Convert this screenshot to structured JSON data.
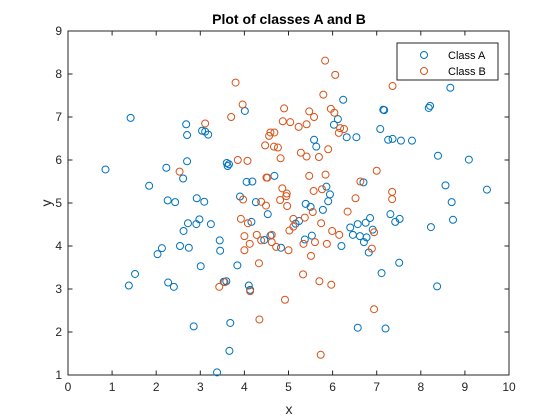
{
  "chart_data": {
    "type": "scatter",
    "title": "Plot of classes A and B",
    "xlabel": "x",
    "ylabel": "y",
    "xlim": [
      0,
      10
    ],
    "ylim": [
      1,
      9
    ],
    "xticks": [
      "0",
      "1",
      "2",
      "3",
      "4",
      "5",
      "6",
      "7",
      "8",
      "9",
      "10"
    ],
    "yticks": [
      "1",
      "2",
      "3",
      "4",
      "5",
      "6",
      "7",
      "8",
      "9"
    ],
    "grid": false,
    "legend_position": "top-right",
    "series": [
      {
        "name": "Class A",
        "color": "#0072BD",
        "marker": "open-circle",
        "points": [
          [
            0.85,
            5.78
          ],
          [
            1.38,
            3.08
          ],
          [
            1.42,
            6.98
          ],
          [
            1.52,
            3.35
          ],
          [
            1.84,
            5.4
          ],
          [
            2.03,
            3.81
          ],
          [
            2.13,
            3.95
          ],
          [
            2.23,
            5.82
          ],
          [
            2.26,
            5.06
          ],
          [
            2.27,
            3.15
          ],
          [
            2.4,
            3.05
          ],
          [
            2.43,
            5.02
          ],
          [
            2.54,
            4.0
          ],
          [
            2.61,
            5.57
          ],
          [
            2.62,
            4.35
          ],
          [
            2.68,
            6.83
          ],
          [
            2.7,
            6.58
          ],
          [
            2.7,
            5.97
          ],
          [
            2.72,
            4.53
          ],
          [
            2.74,
            3.96
          ],
          [
            2.85,
            2.13
          ],
          [
            2.91,
            4.51
          ],
          [
            2.92,
            5.11
          ],
          [
            2.98,
            4.62
          ],
          [
            3.01,
            3.53
          ],
          [
            3.04,
            6.68
          ],
          [
            3.09,
            5.03
          ],
          [
            3.11,
            6.66
          ],
          [
            3.18,
            6.59
          ],
          [
            3.24,
            4.51
          ],
          [
            3.38,
            1.06
          ],
          [
            3.44,
            4.13
          ],
          [
            3.45,
            3.89
          ],
          [
            3.53,
            3.17
          ],
          [
            3.59,
            3.18
          ],
          [
            3.6,
            5.93
          ],
          [
            3.62,
            5.86
          ],
          [
            3.65,
            5.9
          ],
          [
            3.66,
            1.56
          ],
          [
            3.68,
            2.21
          ],
          [
            3.84,
            3.55
          ],
          [
            3.9,
            5.15
          ],
          [
            4.01,
            7.14
          ],
          [
            4.05,
            5.49
          ],
          [
            4.1,
            3.08
          ],
          [
            4.13,
            2.98
          ],
          [
            4.16,
            4.56
          ],
          [
            4.18,
            5.5
          ],
          [
            4.26,
            5.02
          ],
          [
            4.45,
            4.14
          ],
          [
            4.53,
            4.74
          ],
          [
            4.59,
            4.24
          ],
          [
            4.68,
            5.63
          ],
          [
            4.83,
            3.96
          ],
          [
            5.16,
            4.52
          ],
          [
            5.24,
            4.58
          ],
          [
            5.37,
            4.15
          ],
          [
            5.39,
            4.98
          ],
          [
            5.5,
            4.91
          ],
          [
            5.53,
            4.24
          ],
          [
            5.58,
            6.47
          ],
          [
            5.63,
            6.31
          ],
          [
            5.78,
            4.84
          ],
          [
            5.86,
            5.38
          ],
          [
            5.9,
            5.04
          ],
          [
            5.94,
            5.2
          ],
          [
            6.03,
            6.82
          ],
          [
            6.12,
            6.95
          ],
          [
            6.2,
            4.0
          ],
          [
            6.24,
            7.4
          ],
          [
            6.32,
            6.53
          ],
          [
            6.4,
            4.43
          ],
          [
            6.46,
            4.26
          ],
          [
            6.54,
            6.53
          ],
          [
            6.57,
            4.51
          ],
          [
            6.57,
            2.1
          ],
          [
            6.62,
            4.23
          ],
          [
            6.7,
            5.48
          ],
          [
            6.71,
            4.09
          ],
          [
            6.75,
            4.54
          ],
          [
            6.77,
            4.2
          ],
          [
            6.82,
            3.85
          ],
          [
            6.85,
            4.65
          ],
          [
            6.91,
            4.38
          ],
          [
            7.08,
            6.72
          ],
          [
            7.11,
            3.37
          ],
          [
            7.15,
            7.17
          ],
          [
            7.17,
            7.16
          ],
          [
            7.2,
            2.08
          ],
          [
            7.26,
            6.47
          ],
          [
            7.31,
            4.74
          ],
          [
            7.36,
            6.49
          ],
          [
            7.42,
            4.56
          ],
          [
            7.51,
            3.61
          ],
          [
            7.52,
            4.63
          ],
          [
            7.55,
            6.45
          ],
          [
            7.8,
            6.45
          ],
          [
            8.18,
            7.21
          ],
          [
            8.21,
            7.26
          ],
          [
            8.23,
            4.44
          ],
          [
            8.37,
            3.06
          ],
          [
            8.39,
            6.1
          ],
          [
            8.56,
            5.41
          ],
          [
            8.67,
            7.68
          ],
          [
            8.7,
            5.02
          ],
          [
            8.73,
            4.61
          ],
          [
            9.09,
            6.01
          ],
          [
            9.5,
            5.31
          ]
        ]
      },
      {
        "name": "Class B",
        "color": "#D95319",
        "marker": "open-circle",
        "points": [
          [
            2.53,
            5.73
          ],
          [
            3.11,
            6.85
          ],
          [
            3.43,
            3.05
          ],
          [
            3.55,
            3.16
          ],
          [
            3.7,
            7.0
          ],
          [
            3.8,
            7.8
          ],
          [
            3.85,
            6.0
          ],
          [
            3.92,
            4.63
          ],
          [
            3.96,
            7.29
          ],
          [
            3.97,
            5.08
          ],
          [
            4.0,
            3.9
          ],
          [
            4.0,
            4.23
          ],
          [
            4.07,
            5.98
          ],
          [
            4.08,
            4.53
          ],
          [
            4.12,
            4.05
          ],
          [
            4.13,
            2.95
          ],
          [
            4.28,
            4.26
          ],
          [
            4.33,
            3.6
          ],
          [
            4.34,
            2.29
          ],
          [
            4.38,
            4.13
          ],
          [
            4.38,
            5.03
          ],
          [
            4.47,
            6.34
          ],
          [
            4.49,
            4.94
          ],
          [
            4.5,
            5.59
          ],
          [
            4.52,
            5.59
          ],
          [
            4.56,
            6.56
          ],
          [
            4.59,
            6.64
          ],
          [
            4.62,
            4.09
          ],
          [
            4.62,
            4.26
          ],
          [
            4.67,
            6.31
          ],
          [
            4.68,
            6.64
          ],
          [
            4.72,
            3.98
          ],
          [
            4.76,
            6.29
          ],
          [
            4.81,
            5.07
          ],
          [
            4.82,
            6.04
          ],
          [
            4.86,
            5.34
          ],
          [
            4.87,
            6.9
          ],
          [
            4.9,
            7.2
          ],
          [
            4.92,
            2.75
          ],
          [
            4.95,
            5.16
          ],
          [
            4.96,
            5.22
          ],
          [
            4.97,
            4.93
          ],
          [
            5.0,
            3.9
          ],
          [
            5.02,
            4.36
          ],
          [
            5.04,
            6.88
          ],
          [
            5.11,
            4.45
          ],
          [
            5.11,
            4.63
          ],
          [
            5.23,
            6.77
          ],
          [
            5.28,
            6.17
          ],
          [
            5.33,
            3.34
          ],
          [
            5.34,
            4.05
          ],
          [
            5.37,
            4.66
          ],
          [
            5.41,
            6.83
          ],
          [
            5.41,
            6.08
          ],
          [
            5.47,
            7.13
          ],
          [
            5.47,
            5.63
          ],
          [
            5.51,
            3.77
          ],
          [
            5.55,
            4.79
          ],
          [
            5.57,
            5.28
          ],
          [
            5.58,
            7.0
          ],
          [
            5.6,
            4.09
          ],
          [
            5.69,
            6.07
          ],
          [
            5.7,
            3.18
          ],
          [
            5.73,
            1.47
          ],
          [
            5.74,
            4.53
          ],
          [
            5.76,
            5.32
          ],
          [
            5.79,
            7.52
          ],
          [
            5.83,
            8.31
          ],
          [
            5.84,
            5.66
          ],
          [
            5.87,
            4.05
          ],
          [
            5.9,
            6.25
          ],
          [
            5.96,
            7.19
          ],
          [
            5.97,
            3.1
          ],
          [
            5.99,
            4.35
          ],
          [
            6.04,
            7.1
          ],
          [
            6.06,
            7.98
          ],
          [
            6.14,
            6.63
          ],
          [
            6.15,
            4.26
          ],
          [
            6.17,
            6.74
          ],
          [
            6.26,
            6.72
          ],
          [
            6.34,
            4.8
          ],
          [
            6.52,
            5.11
          ],
          [
            6.63,
            5.5
          ],
          [
            6.89,
            3.94
          ],
          [
            6.94,
            4.32
          ],
          [
            6.94,
            2.53
          ],
          [
            7.0,
            5.75
          ],
          [
            7.35,
            5.26
          ],
          [
            7.35,
            5.09
          ],
          [
            7.36,
            7.72
          ]
        ]
      }
    ]
  }
}
